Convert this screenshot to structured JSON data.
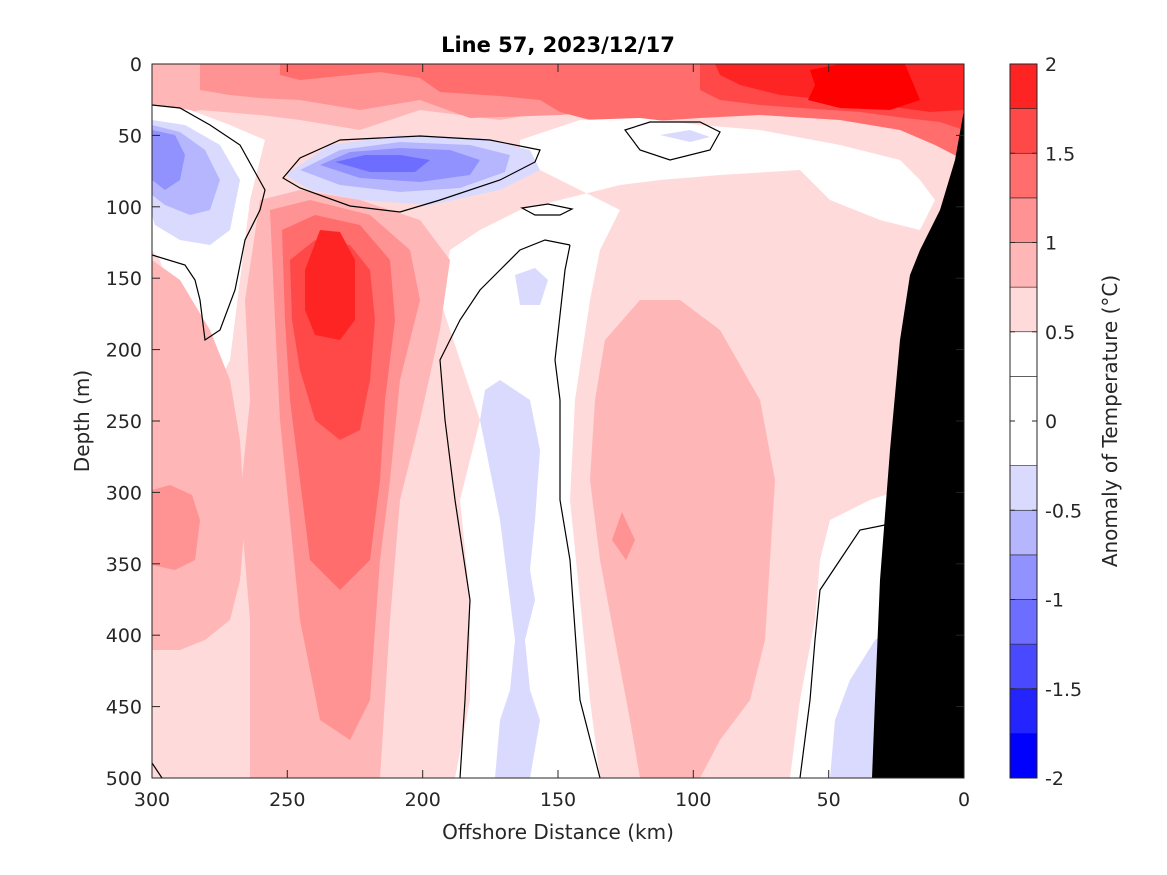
{
  "chart_data": {
    "type": "contourf",
    "title": "Line 57, 2023/12/17",
    "xlabel": "Offshore Distance (km)",
    "ylabel": "Depth (m)",
    "xlim": [
      300,
      0
    ],
    "ylim": [
      500,
      0
    ],
    "x_ticks": [
      "300",
      "250",
      "200",
      "150",
      "100",
      "50",
      "0"
    ],
    "y_ticks": [
      "0",
      "50",
      "100",
      "150",
      "200",
      "250",
      "300",
      "350",
      "400",
      "450",
      "500"
    ],
    "colorbar": {
      "label": "Anomaly of Temperature (°C)",
      "range": [
        -2,
        2
      ],
      "ticks": [
        "2",
        "1.5",
        "1",
        "0.5",
        "0",
        "-0.5",
        "-1",
        "-1.5",
        "-2"
      ],
      "levels": [
        -2,
        -1.75,
        -1.5,
        -1.25,
        -1,
        -0.75,
        -0.5,
        -0.25,
        0.25,
        0.5,
        0.75,
        1,
        1.25,
        1.5,
        1.75,
        2
      ],
      "colors": [
        "#0000ff",
        "#2424ff",
        "#4949ff",
        "#6d6dff",
        "#9292ff",
        "#b6b6ff",
        "#dadaff",
        "#ffffff",
        "#ffffff",
        "#ffdada",
        "#ffb6b6",
        "#ff9292",
        "#ff6d6d",
        "#ff4949",
        "#ff2424",
        "#ff0000"
      ]
    },
    "features": [
      {
        "name": "warm surface layer nearshore",
        "x_range": [
          90,
          0
        ],
        "depth_range": [
          0,
          30
        ],
        "anomaly": 1.9
      },
      {
        "name": "warm surface layer offshore",
        "x_range": [
          300,
          90
        ],
        "depth_range": [
          0,
          45
        ],
        "anomaly": 0.9
      },
      {
        "name": "cold core near 210 km",
        "x_center": 215,
        "depth_center": 70,
        "anomaly": -1.3
      },
      {
        "name": "cold core near 300 km",
        "x_center": 290,
        "depth_center": 60,
        "anomaly": -1.0
      },
      {
        "name": "warm core near 235 km",
        "x_center": 235,
        "depth_center": 160,
        "anomaly": 1.6
      },
      {
        "name": "cold band near 160 km",
        "x_center": 160,
        "depth_range": [
          260,
          500
        ],
        "anomaly": -0.3
      },
      {
        "name": "warm band near 100 km",
        "x_center": 100,
        "depth_range": [
          200,
          480
        ],
        "anomaly": 0.6
      },
      {
        "name": "cold patch near 35 km",
        "x_center": 35,
        "depth_range": [
          420,
          500
        ],
        "anomaly": -0.3
      }
    ],
    "land_mask": {
      "color": "#000000",
      "label": "bathymetry"
    },
    "grid": false
  },
  "colors": {
    "axis": "#262626",
    "contour_line": "#000000",
    "land": "#000000"
  }
}
